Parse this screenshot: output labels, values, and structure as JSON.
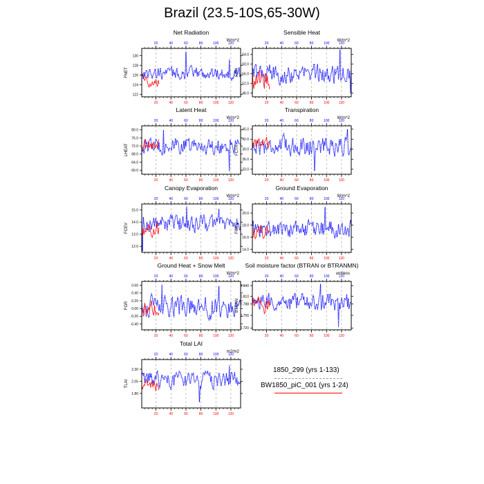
{
  "page": {
    "title": "Brazil (23.5-10S,65-30W)"
  },
  "colors": {
    "series_a": "#0000ff",
    "series_b": "#ff0000",
    "legend_dash": "#999999"
  },
  "legend": {
    "entries": [
      {
        "label": "1850_299 (yrs 1-133)",
        "style": "dashed-gray"
      },
      {
        "label": "BW1850_piC_001 (yrs 1-24)",
        "style": "solid-red"
      }
    ]
  },
  "chart_data": [
    {
      "type": "line",
      "title": "Net Radiation",
      "ylabel": "FNET",
      "units": "W/m^2",
      "ylim": [
        121.5,
        131.5
      ],
      "yticks": [
        "122",
        "124",
        "126",
        "128",
        "130"
      ],
      "ytick_values": [
        122,
        124,
        126,
        128,
        130
      ],
      "xlim": [
        1,
        133
      ],
      "xticks": [
        "20",
        "40",
        "60",
        "80",
        "100",
        "120"
      ],
      "series": [
        {
          "name": "1850_299",
          "color": "blue",
          "years": [
            1,
            133
          ],
          "mean": 126.3,
          "amp": 1.3,
          "spikes": [
            [
              60,
              130.8
            ],
            [
              118,
              129.2
            ]
          ]
        },
        {
          "name": "BW1850_piC_001",
          "color": "red",
          "years": [
            1,
            24
          ],
          "mean": 124.8,
          "amp": 1.2
        }
      ]
    },
    {
      "type": "line",
      "title": "Sensible Heat",
      "ylabel": "FSH",
      "units": "W/m^2",
      "ylim": [
        46.5,
        66.5
      ],
      "yticks": [
        "48.0",
        "52.0",
        "56.0",
        "60.0",
        "64.0"
      ],
      "ytick_values": [
        48,
        52,
        56,
        60,
        64
      ],
      "xlim": [
        1,
        133
      ],
      "xticks": [
        "20",
        "40",
        "60",
        "80",
        "100",
        "120"
      ],
      "series": [
        {
          "name": "1850_299",
          "color": "blue",
          "years": [
            1,
            133
          ],
          "mean": 56.0,
          "amp": 4.0,
          "spikes": [
            [
              118,
              66.0
            ],
            [
              132,
              48.0
            ]
          ]
        },
        {
          "name": "BW1850_piC_001",
          "color": "red",
          "years": [
            1,
            24
          ],
          "mean": 53.5,
          "amp": 4.0
        }
      ]
    },
    {
      "type": "line",
      "title": "Latent Heat",
      "ylabel": "LHEAT",
      "units": "W/m^2",
      "ylim": [
        58.0,
        82.0
      ],
      "yticks": [
        "60.0",
        "64.0",
        "68.0",
        "72.0",
        "76.0",
        "80.0"
      ],
      "ytick_values": [
        60,
        64,
        68,
        72,
        76,
        80
      ],
      "xlim": [
        1,
        133
      ],
      "xticks": [
        "20",
        "40",
        "60",
        "80",
        "100",
        "120"
      ],
      "series": [
        {
          "name": "1850_299",
          "color": "blue",
          "years": [
            1,
            133
          ],
          "mean": 72.0,
          "amp": 4.0,
          "spikes": [
            [
              30,
              80.0
            ],
            [
              118,
              59.5
            ]
          ]
        },
        {
          "name": "BW1850_piC_001",
          "color": "red",
          "years": [
            1,
            24
          ],
          "mean": 72.5,
          "amp": 3.0
        }
      ]
    },
    {
      "type": "line",
      "title": "Transpiration",
      "ylabel": "FCTR",
      "units": "W/m^2",
      "ylim": [
        31.5,
        46.0
      ],
      "yticks": [
        "33.0",
        "36.0",
        "39.0",
        "42.0",
        "45.0"
      ],
      "ytick_values": [
        33,
        36,
        39,
        42,
        45
      ],
      "xlim": [
        1,
        133
      ],
      "xticks": [
        "20",
        "40",
        "60",
        "80",
        "100",
        "120"
      ],
      "series": [
        {
          "name": "1850_299",
          "color": "blue",
          "years": [
            1,
            133
          ],
          "mean": 40.0,
          "amp": 2.8,
          "spikes": [
            [
              84,
              32.5
            ],
            [
              128,
              45.0
            ]
          ]
        },
        {
          "name": "BW1850_piC_001",
          "color": "red",
          "years": [
            1,
            24
          ],
          "mean": 40.5,
          "amp": 2.0
        }
      ]
    },
    {
      "type": "line",
      "title": "Canopy Evaporation",
      "ylabel": "FCEV",
      "units": "W/m^2",
      "ylim": [
        11.5,
        15.5
      ],
      "yticks": [
        "12.0",
        "13.0",
        "14.0",
        "15.0"
      ],
      "ytick_values": [
        12,
        13,
        14,
        15
      ],
      "xlim": [
        1,
        133
      ],
      "xticks": [
        "20",
        "40",
        "60",
        "80",
        "100",
        "120"
      ],
      "series": [
        {
          "name": "1850_299",
          "color": "blue",
          "years": [
            1,
            133
          ],
          "mean": 13.9,
          "amp": 0.7,
          "spikes": [
            [
              61,
              15.3
            ],
            [
              104,
              15.1
            ],
            [
              2,
              11.6
            ]
          ]
        },
        {
          "name": "BW1850_piC_001",
          "color": "red",
          "years": [
            1,
            24
          ],
          "mean": 13.6,
          "amp": 0.7
        }
      ]
    },
    {
      "type": "line",
      "title": "Ground Evaporation",
      "ylabel": "FGEV",
      "units": "W/m^2",
      "ylim": [
        13.5,
        21.5
      ],
      "yticks": [
        "14.0",
        "16.0",
        "18.0",
        "20.0"
      ],
      "ytick_values": [
        14,
        16,
        18,
        20
      ],
      "xlim": [
        1,
        133
      ],
      "xticks": [
        "20",
        "40",
        "60",
        "80",
        "100",
        "120"
      ],
      "series": [
        {
          "name": "1850_299",
          "color": "blue",
          "years": [
            1,
            133
          ],
          "mean": 17.3,
          "amp": 1.5,
          "spikes": [
            [
              98,
              21.0
            ]
          ]
        },
        {
          "name": "BW1850_piC_001",
          "color": "red",
          "years": [
            1,
            24
          ],
          "mean": 16.8,
          "amp": 1.5
        }
      ]
    },
    {
      "type": "line",
      "title": "Ground Heat + Snow Melt",
      "ylabel": "FGR",
      "units": "W/m^2",
      "ylim": [
        -0.55,
        0.7
      ],
      "yticks": [
        "-0.40",
        "-0.20",
        "0.00",
        "0.20",
        "0.40",
        "0.60"
      ],
      "ytick_values": [
        -0.4,
        -0.2,
        0,
        0.2,
        0.4,
        0.6
      ],
      "xlim": [
        1,
        133
      ],
      "xticks": [
        "20",
        "40",
        "60",
        "80",
        "100",
        "120"
      ],
      "series": [
        {
          "name": "1850_299",
          "color": "blue",
          "years": [
            1,
            133
          ],
          "mean": 0.03,
          "amp": 0.28,
          "spikes": [
            [
              28,
              0.62
            ],
            [
              104,
              0.58
            ]
          ]
        },
        {
          "name": "BW1850_piC_001",
          "color": "red",
          "years": [
            1,
            24
          ],
          "mean": 0.0,
          "amp": 0.25
        }
      ]
    },
    {
      "type": "line",
      "title": "Soil moisture factor (BTRAN or BTRANMN)",
      "ylabel": "BTRAN",
      "units": "unitless",
      "ylim": [
        0.715,
        0.852
      ],
      "yticks": [
        "0.720",
        "0.756",
        "0.788",
        "0.810",
        "0.840"
      ],
      "ytick_values": [
        0.72,
        0.756,
        0.788,
        0.81,
        0.84
      ],
      "xlim": [
        1,
        133
      ],
      "xticks": [
        "20",
        "40",
        "60",
        "80",
        "100",
        "120"
      ],
      "series": [
        {
          "name": "1850_299",
          "color": "blue",
          "years": [
            1,
            133
          ],
          "mean": 0.792,
          "amp": 0.025,
          "spikes": [
            [
              92,
              0.845
            ],
            [
              116,
              0.722
            ]
          ]
        },
        {
          "name": "BW1850_piC_001",
          "color": "red",
          "years": [
            1,
            24
          ],
          "mean": 0.79,
          "amp": 0.028
        }
      ]
    },
    {
      "type": "line",
      "title": "Total LAI",
      "ylabel": "TLAI",
      "units": "m2/m2",
      "ylim": [
        1.5,
        2.5
      ],
      "yticks": [
        "1.80",
        "2.05",
        "2.30"
      ],
      "ytick_values": [
        1.8,
        2.05,
        2.3
      ],
      "xlim": [
        1,
        133
      ],
      "xticks": [
        "20",
        "40",
        "60",
        "80",
        "100",
        "120"
      ],
      "series": [
        {
          "name": "1850_299",
          "color": "blue",
          "years": [
            1,
            133
          ],
          "mean": 2.08,
          "amp": 0.17,
          "spikes": [
            [
              118,
              2.38
            ],
            [
              78,
              1.62
            ]
          ]
        },
        {
          "name": "BW1850_piC_001",
          "color": "red",
          "years": [
            1,
            24
          ],
          "mean": 1.98,
          "amp": 0.14
        }
      ]
    }
  ]
}
